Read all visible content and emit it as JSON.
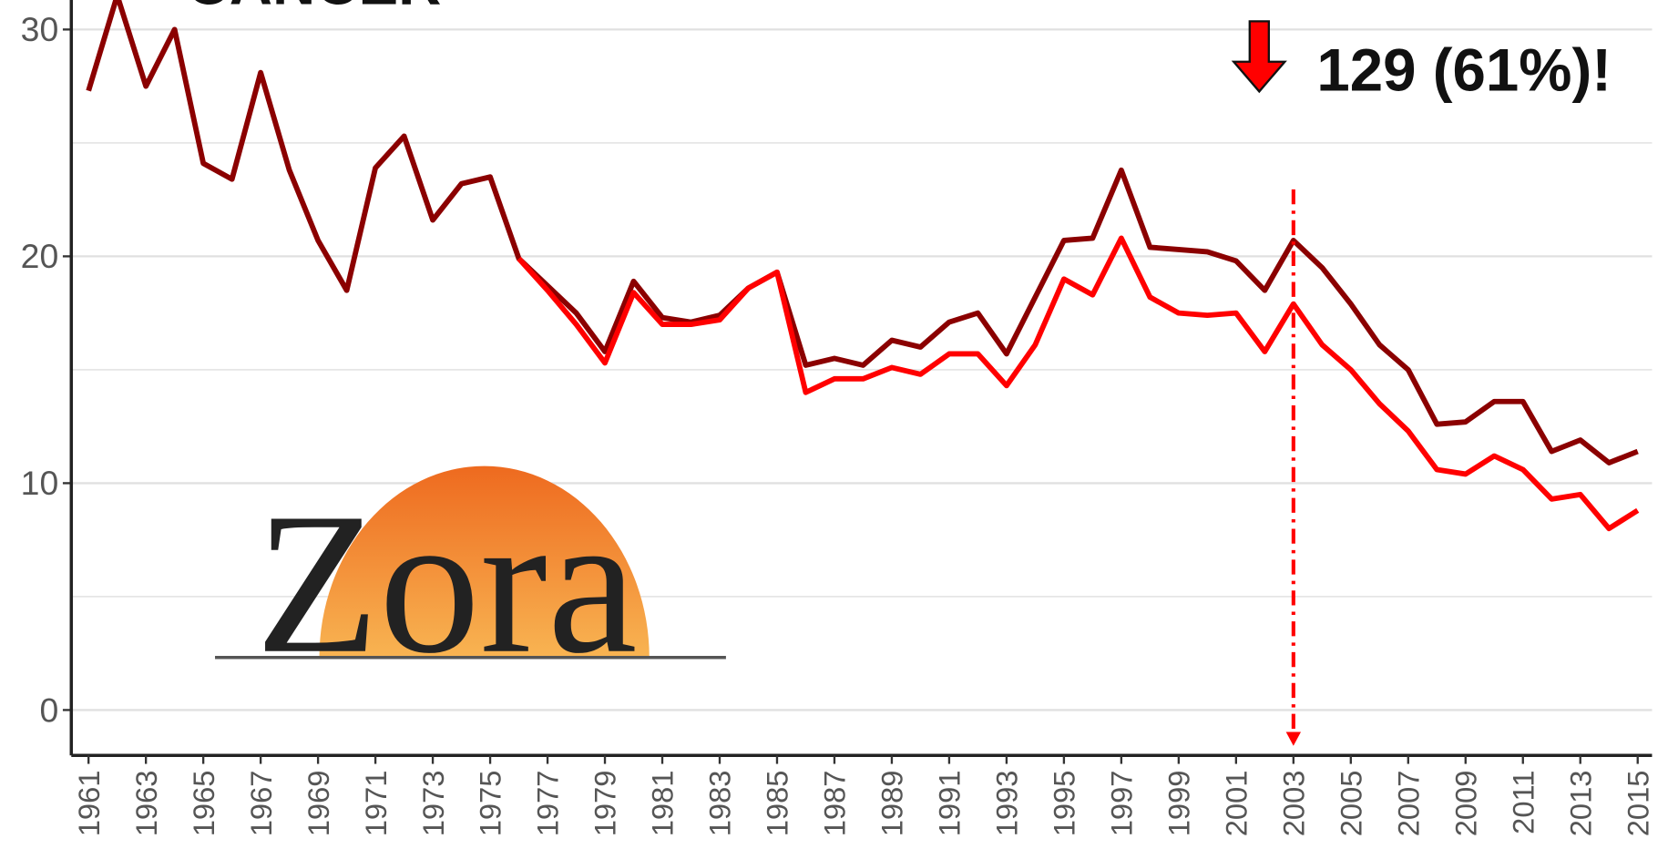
{
  "chart_data": {
    "type": "line",
    "title": "CANCER",
    "annotation": "129 (61%)!",
    "logo": "Zora",
    "x": [
      1961,
      1962,
      1963,
      1964,
      1965,
      1966,
      1967,
      1968,
      1969,
      1970,
      1971,
      1972,
      1973,
      1974,
      1975,
      1976,
      1977,
      1978,
      1979,
      1980,
      1981,
      1982,
      1983,
      1984,
      1985,
      1986,
      1987,
      1988,
      1989,
      1990,
      1991,
      1992,
      1993,
      1994,
      1995,
      1996,
      1997,
      1998,
      1999,
      2000,
      2001,
      2002,
      2003,
      2004,
      2005,
      2006,
      2007,
      2008,
      2009,
      2010,
      2011,
      2012,
      2013,
      2014,
      2015
    ],
    "series": [
      {
        "color": "#8b0000",
        "values": [
          27.3,
          31.5,
          27.5,
          30.0,
          24.1,
          23.4,
          28.1,
          23.8,
          20.7,
          18.5,
          23.9,
          25.3,
          21.6,
          23.2,
          23.5,
          19.9,
          18.7,
          17.5,
          15.8,
          18.9,
          17.3,
          17.1,
          17.4,
          18.6,
          19.3,
          15.2,
          15.5,
          15.2,
          16.3,
          16.0,
          17.1,
          17.5,
          15.7,
          18.2,
          20.7,
          20.8,
          23.8,
          20.4,
          20.3,
          20.2,
          19.8,
          18.5,
          20.7,
          19.5,
          17.9,
          16.1,
          15.0,
          12.6,
          12.7,
          13.6,
          13.6,
          11.4,
          11.9,
          10.9,
          11.4
        ]
      },
      {
        "color": "#ff0000",
        "values": [
          null,
          null,
          null,
          null,
          null,
          null,
          null,
          null,
          null,
          null,
          null,
          null,
          null,
          null,
          null,
          19.9,
          18.5,
          17.0,
          15.3,
          18.4,
          17.0,
          17.0,
          17.2,
          18.6,
          19.3,
          14.0,
          14.6,
          14.6,
          15.1,
          14.8,
          15.7,
          15.7,
          14.3,
          16.1,
          19.0,
          18.3,
          20.8,
          18.2,
          17.5,
          17.4,
          17.5,
          15.8,
          17.9,
          16.1,
          15.0,
          13.5,
          12.3,
          10.6,
          10.4,
          11.2,
          10.6,
          9.3,
          9.5,
          8.0,
          8.8
        ]
      }
    ],
    "xlim": [
      1960.4,
      2015.5
    ],
    "xticks": [
      1961,
      1963,
      1965,
      1967,
      1969,
      1971,
      1973,
      1975,
      1977,
      1979,
      1981,
      1983,
      1985,
      1987,
      1989,
      1991,
      1993,
      1995,
      1997,
      1999,
      2001,
      2003,
      2005,
      2007,
      2009,
      2011,
      2013,
      2015
    ],
    "ylim": [
      -2,
      31.3
    ],
    "yticks": [
      0,
      10,
      20,
      30
    ],
    "minor_yticks": [
      5,
      15,
      25
    ],
    "grid": true,
    "vline_x": 2003
  }
}
